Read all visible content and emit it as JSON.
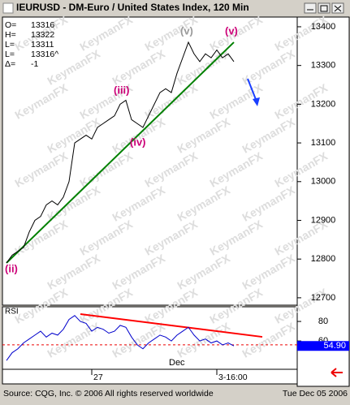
{
  "window_title": "IEURUSD - DM-Euro / United States Index, 120 Min",
  "watermark": "KeymanFX",
  "info": [
    {
      "label": "O=",
      "value": "13316"
    },
    {
      "label": "H=",
      "value": "13322"
    },
    {
      "label": "L=",
      "value": "13311"
    },
    {
      "label": "L=",
      "value": "13316^"
    },
    {
      "label": "Δ=",
      "value": "-1"
    }
  ],
  "footer": {
    "source": "Source: CQG, Inc. © 2006 All rights reserved worldwide",
    "date": "Tue Dec 05 2006"
  },
  "chart_data": [
    {
      "type": "line",
      "series": [
        {
          "color": "#000000",
          "values": [
            12790,
            12810,
            12820,
            12830,
            12870,
            12900,
            12910,
            12940,
            12950,
            12940,
            12960,
            13000,
            13100,
            13110,
            13120,
            13110,
            13140,
            13150,
            13160,
            13170,
            13200,
            13210,
            13160,
            13150,
            13140,
            13170,
            13200,
            13230,
            13240,
            13230,
            13280,
            13320,
            13360,
            13330,
            13310,
            13330,
            13320,
            13340,
            13320,
            13330,
            13310
          ]
        }
      ],
      "trendline": {
        "color": "#008000",
        "x": [
          0,
          40
        ],
        "values": [
          12790,
          13360
        ]
      },
      "annotations": [
        {
          "text": "(ii)",
          "color": "#cc0077"
        },
        {
          "text": "(iii)",
          "color": "#cc0077"
        },
        {
          "text": "(iv)",
          "color": "#cc0077"
        },
        {
          "text": "(v)",
          "color": "#999999"
        },
        {
          "text": "(v)",
          "color": "#cc0077"
        }
      ],
      "ylim": [
        12683,
        13423
      ],
      "yticks": [
        12700,
        12800,
        12900,
        13000,
        13100,
        13200,
        13300,
        13400
      ]
    },
    {
      "type": "line",
      "title": "RSI",
      "categories": [
        null,
        null,
        null,
        null,
        null,
        null,
        null,
        null,
        null,
        null,
        null,
        null,
        null,
        null,
        null,
        "27",
        null,
        null,
        null,
        null,
        null,
        null,
        null,
        null,
        null,
        null,
        null,
        null,
        null,
        null,
        null,
        null,
        null,
        null,
        null,
        null,
        null,
        "3-16:00",
        null,
        null,
        null
      ],
      "series": [
        {
          "color": "#0000cc",
          "values": [
            40,
            48,
            52,
            58,
            62,
            66,
            70,
            64,
            68,
            66,
            72,
            82,
            86,
            80,
            78,
            70,
            74,
            72,
            68,
            70,
            76,
            74,
            64,
            56,
            52,
            58,
            62,
            66,
            64,
            60,
            66,
            70,
            74,
            66,
            60,
            62,
            58,
            60,
            56,
            58,
            54.9
          ]
        }
      ],
      "current": {
        "value": 54.9,
        "label": "54.90"
      },
      "ref_line": 56,
      "trendline": {
        "color": "#ff0000",
        "x": [
          13,
          45
        ],
        "values": [
          87.5,
          64.2
        ]
      },
      "annotations": [
        {
          "text": "Dec"
        }
      ],
      "ylim": [
        31,
        95
      ],
      "yticks": [
        80,
        60
      ]
    }
  ]
}
